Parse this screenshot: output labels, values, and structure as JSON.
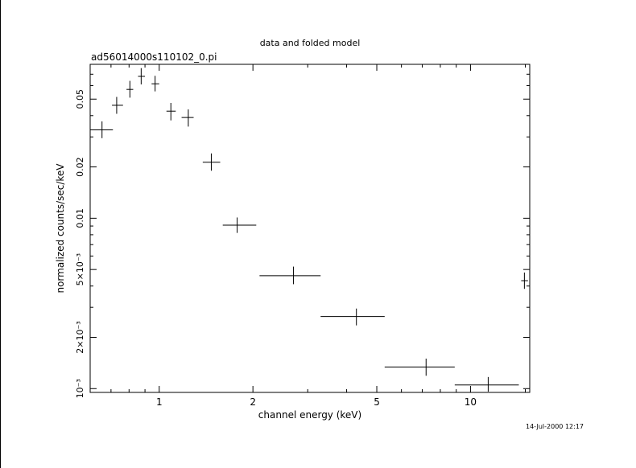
{
  "chart_data": {
    "type": "scatter",
    "title": "data and folded model",
    "subtitle": "ad56014000s110102_0.pi",
    "xlabel": "channel energy (keV)",
    "ylabel": "normalized counts/sec/keV",
    "timestamp": "14-Jul-2000 12:17",
    "x_scale": "log",
    "y_scale": "log",
    "xlim": [
      0.6,
      15.5
    ],
    "ylim": [
      0.00095,
      0.08
    ],
    "x_ticks": [
      {
        "value": 1,
        "label": "1"
      },
      {
        "value": 2,
        "label": "2"
      },
      {
        "value": 5,
        "label": "5"
      },
      {
        "value": 10,
        "label": "10"
      }
    ],
    "y_ticks": [
      {
        "value": 0.001,
        "label": "10⁻³"
      },
      {
        "value": 0.002,
        "label": "2×10⁻³"
      },
      {
        "value": 0.005,
        "label": "5×10⁻³"
      },
      {
        "value": 0.01,
        "label": "0.01"
      },
      {
        "value": 0.02,
        "label": "0.02"
      },
      {
        "value": 0.05,
        "label": "0.05"
      }
    ],
    "points": [
      {
        "x": 0.655,
        "x_lo": 0.6,
        "x_hi": 0.71,
        "y": 0.033,
        "y_lo": 0.0295,
        "y_hi": 0.037
      },
      {
        "x": 0.73,
        "x_lo": 0.705,
        "x_hi": 0.765,
        "y": 0.046,
        "y_lo": 0.041,
        "y_hi": 0.0515
      },
      {
        "x": 0.805,
        "x_lo": 0.785,
        "x_hi": 0.825,
        "y": 0.057,
        "y_lo": 0.051,
        "y_hi": 0.064
      },
      {
        "x": 0.875,
        "x_lo": 0.855,
        "x_hi": 0.9,
        "y": 0.068,
        "y_lo": 0.061,
        "y_hi": 0.076
      },
      {
        "x": 0.97,
        "x_lo": 0.945,
        "x_hi": 1.0,
        "y": 0.0615,
        "y_lo": 0.0555,
        "y_hi": 0.0685
      },
      {
        "x": 1.09,
        "x_lo": 1.055,
        "x_hi": 1.13,
        "y": 0.0425,
        "y_lo": 0.0375,
        "y_hi": 0.0475
      },
      {
        "x": 1.24,
        "x_lo": 1.18,
        "x_hi": 1.29,
        "y": 0.039,
        "y_lo": 0.0345,
        "y_hi": 0.0435
      },
      {
        "x": 1.47,
        "x_lo": 1.38,
        "x_hi": 1.57,
        "y": 0.0213,
        "y_lo": 0.019,
        "y_hi": 0.024
      },
      {
        "x": 1.78,
        "x_lo": 1.6,
        "x_hi": 2.05,
        "y": 0.0091,
        "y_lo": 0.0082,
        "y_hi": 0.0101
      },
      {
        "x": 2.7,
        "x_lo": 2.1,
        "x_hi": 3.3,
        "y": 0.0046,
        "y_lo": 0.0041,
        "y_hi": 0.0052
      },
      {
        "x": 4.3,
        "x_lo": 3.3,
        "x_hi": 5.3,
        "y": 0.00265,
        "y_lo": 0.00235,
        "y_hi": 0.00295
      },
      {
        "x": 7.2,
        "x_lo": 5.3,
        "x_hi": 8.9,
        "y": 0.00134,
        "y_lo": 0.00119,
        "y_hi": 0.0015
      },
      {
        "x": 11.4,
        "x_lo": 8.9,
        "x_hi": 14.3,
        "y": 0.00105,
        "y_lo": 0.00096,
        "y_hi": 0.00117
      },
      {
        "x": 14.9,
        "x_lo": 14.55,
        "x_hi": 15.3,
        "y": 0.0043,
        "y_lo": 0.00385,
        "y_hi": 0.0048
      }
    ]
  }
}
